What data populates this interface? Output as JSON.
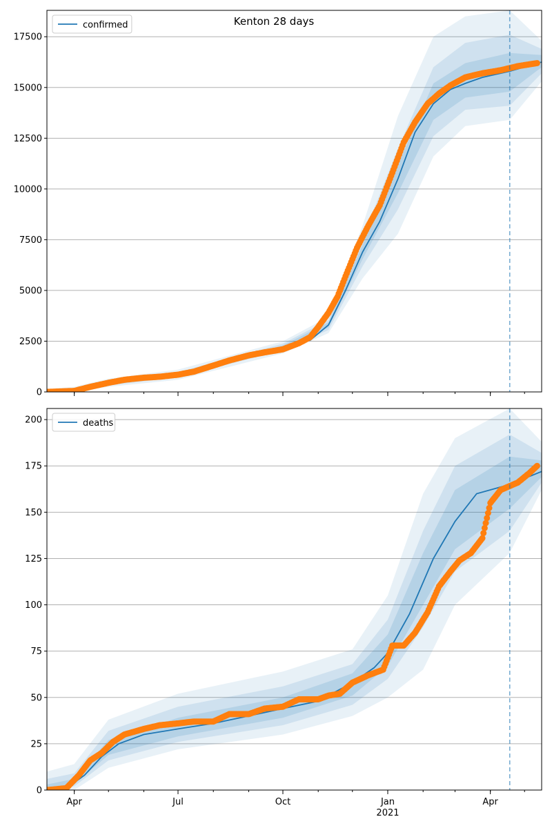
{
  "figure": {
    "title": "Kenton 28 days"
  },
  "chart_data": [
    {
      "type": "line",
      "panel": "confirmed",
      "title": "Kenton 28 days",
      "legend": {
        "placement": "top-left",
        "entries": [
          "confirmed"
        ]
      },
      "grid": "horizontal",
      "x_axis": {
        "range": [
          "2020-03-08",
          "2021-05-16"
        ],
        "ticks": [
          {
            "date": "2020-04-01",
            "label": "Apr"
          },
          {
            "date": "2020-07-01",
            "label": "Jul"
          },
          {
            "date": "2020-10-01",
            "label": "Oct"
          },
          {
            "date": "2021-01-01",
            "label": "Jan",
            "sub": "2021"
          },
          {
            "date": "2021-04-01",
            "label": "Apr"
          }
        ]
      },
      "y_axis": {
        "range": [
          0,
          18800
        ],
        "ticks": [
          0,
          2500,
          5000,
          7500,
          10000,
          12500,
          15000,
          17500
        ],
        "tick_labels": [
          "0",
          "2500",
          "5000",
          "7500",
          "10000",
          "12500",
          "15000",
          "17500"
        ]
      },
      "forecast_start": "2021-04-18",
      "series": [
        {
          "name": "confirmed",
          "role": "model median",
          "color": "#1f77b4",
          "x": [
            "2020-03-08",
            "2020-04-01",
            "2020-05-01",
            "2020-06-01",
            "2020-07-01",
            "2020-08-01",
            "2020-09-01",
            "2020-10-01",
            "2020-10-25",
            "2020-11-10",
            "2020-11-25",
            "2020-12-10",
            "2020-12-25",
            "2021-01-10",
            "2021-01-25",
            "2021-02-10",
            "2021-02-25",
            "2021-03-10",
            "2021-03-25",
            "2021-04-18",
            "2021-05-16"
          ],
          "y": [
            0,
            20,
            400,
            700,
            850,
            1250,
            1700,
            2200,
            2550,
            3300,
            5000,
            6900,
            8400,
            10500,
            12800,
            14200,
            14900,
            15200,
            15500,
            15800,
            16250
          ]
        },
        {
          "name": "observed confirmed",
          "role": "observations",
          "color": "#ff7f0e",
          "x": [
            "2020-03-08",
            "2020-04-01",
            "2020-04-15",
            "2020-05-01",
            "2020-05-15",
            "2020-06-01",
            "2020-06-15",
            "2020-07-01",
            "2020-07-15",
            "2020-08-01",
            "2020-08-15",
            "2020-09-01",
            "2020-09-15",
            "2020-10-01",
            "2020-10-15",
            "2020-10-25",
            "2020-11-01",
            "2020-11-10",
            "2020-11-18",
            "2020-11-25",
            "2020-12-05",
            "2020-12-15",
            "2020-12-25",
            "2021-01-05",
            "2021-01-15",
            "2021-01-25",
            "2021-02-05",
            "2021-02-15",
            "2021-02-25",
            "2021-03-10",
            "2021-03-25",
            "2021-04-10",
            "2021-04-25",
            "2021-05-12"
          ],
          "y": [
            0,
            50,
            250,
            450,
            600,
            700,
            750,
            850,
            1000,
            1300,
            1550,
            1800,
            1950,
            2100,
            2400,
            2700,
            3200,
            3900,
            4700,
            5700,
            7100,
            8200,
            9200,
            10800,
            12300,
            13300,
            14200,
            14700,
            15100,
            15500,
            15700,
            15850,
            16050,
            16200
          ]
        }
      ],
      "bands": [
        {
          "name": "outer",
          "opacity": 0.1,
          "x": [
            "2020-03-08",
            "2020-04-01",
            "2020-05-01",
            "2020-07-01",
            "2020-10-01",
            "2020-11-10",
            "2020-12-10",
            "2021-01-10",
            "2021-02-10",
            "2021-03-10",
            "2021-04-18",
            "2021-05-16"
          ],
          "lower": [
            0,
            0,
            250,
            600,
            1900,
            2900,
            5600,
            7800,
            11600,
            13100,
            13400,
            15300
          ],
          "upper": [
            150,
            250,
            650,
            1100,
            2500,
            3700,
            8200,
            13600,
            17500,
            18500,
            18800,
            17300
          ]
        },
        {
          "name": "middle",
          "opacity": 0.12,
          "x": [
            "2020-03-08",
            "2020-04-01",
            "2020-05-01",
            "2020-07-01",
            "2020-10-01",
            "2020-11-10",
            "2020-12-10",
            "2021-01-10",
            "2021-02-10",
            "2021-03-10",
            "2021-04-18",
            "2021-05-16"
          ],
          "lower": [
            0,
            10,
            320,
            720,
            2050,
            3050,
            6200,
            9000,
            12600,
            13900,
            14100,
            15700
          ],
          "upper": [
            80,
            120,
            520,
            980,
            2380,
            3550,
            7600,
            12000,
            16000,
            17200,
            17600,
            16900
          ]
        },
        {
          "name": "inner",
          "opacity": 0.14,
          "x": [
            "2020-03-08",
            "2020-04-01",
            "2020-05-01",
            "2020-07-01",
            "2020-10-01",
            "2020-11-10",
            "2020-12-10",
            "2021-01-10",
            "2021-02-10",
            "2021-03-10",
            "2021-04-18",
            "2021-05-16"
          ],
          "lower": [
            0,
            15,
            360,
            790,
            2130,
            3180,
            6550,
            9800,
            13400,
            14500,
            14800,
            16000
          ],
          "upper": [
            40,
            60,
            460,
            910,
            2290,
            3430,
            7250,
            11200,
            15200,
            16200,
            16700,
            16600
          ]
        }
      ]
    },
    {
      "type": "line",
      "panel": "deaths",
      "legend": {
        "placement": "top-left",
        "entries": [
          "deaths"
        ]
      },
      "grid": "horizontal",
      "x_axis": {
        "range": [
          "2020-03-08",
          "2021-05-16"
        ],
        "ticks": [
          {
            "date": "2020-04-01",
            "label": "Apr"
          },
          {
            "date": "2020-07-01",
            "label": "Jul"
          },
          {
            "date": "2020-10-01",
            "label": "Oct"
          },
          {
            "date": "2021-01-01",
            "label": "Jan",
            "sub": "2021"
          },
          {
            "date": "2021-04-01",
            "label": "Apr"
          }
        ]
      },
      "y_axis": {
        "range": [
          0,
          206
        ],
        "ticks": [
          0,
          25,
          50,
          75,
          100,
          125,
          150,
          175,
          200
        ],
        "tick_labels": [
          "0",
          "25",
          "50",
          "75",
          "100",
          "125",
          "150",
          "175",
          "200"
        ]
      },
      "forecast_start": "2021-04-18",
      "series": [
        {
          "name": "deaths",
          "role": "model median",
          "color": "#1f77b4",
          "x": [
            "2020-03-08",
            "2020-03-25",
            "2020-04-10",
            "2020-04-25",
            "2020-05-10",
            "2020-06-01",
            "2020-07-01",
            "2020-08-01",
            "2020-09-01",
            "2020-10-01",
            "2020-11-01",
            "2020-12-01",
            "2020-12-20",
            "2021-01-01",
            "2021-01-20",
            "2021-02-10",
            "2021-03-01",
            "2021-03-20",
            "2021-04-18",
            "2021-05-16"
          ],
          "y": [
            0,
            1,
            8,
            18,
            25,
            30,
            33,
            36,
            40,
            44,
            48,
            58,
            66,
            74,
            95,
            125,
            145,
            160,
            165,
            172
          ]
        },
        {
          "name": "observed deaths",
          "role": "observations",
          "color": "#ff7f0e",
          "x": [
            "2020-03-08",
            "2020-03-25",
            "2020-04-05",
            "2020-04-15",
            "2020-04-25",
            "2020-05-05",
            "2020-05-15",
            "2020-06-01",
            "2020-06-15",
            "2020-07-01",
            "2020-07-15",
            "2020-08-01",
            "2020-08-15",
            "2020-09-01",
            "2020-09-15",
            "2020-10-01",
            "2020-10-15",
            "2020-11-01",
            "2020-11-10",
            "2020-11-20",
            "2020-12-01",
            "2020-12-15",
            "2020-12-28",
            "2021-01-05",
            "2021-01-15",
            "2021-01-25",
            "2021-02-05",
            "2021-02-15",
            "2021-02-25",
            "2021-03-05",
            "2021-03-15",
            "2021-03-25",
            "2021-04-01",
            "2021-04-10",
            "2021-04-25",
            "2021-05-05",
            "2021-05-12"
          ],
          "y": [
            0,
            1,
            8,
            16,
            20,
            26,
            30,
            33,
            35,
            36,
            37,
            37,
            41,
            41,
            44,
            45,
            49,
            49,
            51,
            52,
            58,
            62,
            65,
            78,
            78,
            85,
            96,
            110,
            118,
            124,
            128,
            136,
            155,
            162,
            166,
            171,
            175
          ]
        }
      ],
      "bands": [
        {
          "name": "outer",
          "opacity": 0.1,
          "x": [
            "2020-03-08",
            "2020-04-01",
            "2020-05-01",
            "2020-07-01",
            "2020-10-01",
            "2020-12-01",
            "2021-01-01",
            "2021-02-01",
            "2021-03-01",
            "2021-04-18",
            "2021-05-16"
          ],
          "lower": [
            0,
            0,
            12,
            22,
            30,
            40,
            50,
            65,
            100,
            128,
            162
          ],
          "upper": [
            10,
            14,
            38,
            52,
            64,
            76,
            105,
            160,
            190,
            206,
            188
          ]
        },
        {
          "name": "middle",
          "opacity": 0.12,
          "x": [
            "2020-03-08",
            "2020-04-01",
            "2020-05-01",
            "2020-07-01",
            "2020-10-01",
            "2020-12-01",
            "2021-01-01",
            "2021-02-01",
            "2021-03-01",
            "2021-04-18",
            "2021-05-16"
          ],
          "lower": [
            0,
            2,
            16,
            26,
            35,
            46,
            60,
            88,
            118,
            140,
            166
          ],
          "upper": [
            6,
            9,
            32,
            45,
            56,
            68,
            92,
            140,
            175,
            192,
            182
          ]
        },
        {
          "name": "inner",
          "opacity": 0.14,
          "x": [
            "2020-03-08",
            "2020-04-01",
            "2020-05-01",
            "2020-07-01",
            "2020-10-01",
            "2020-12-01",
            "2021-01-01",
            "2021-02-01",
            "2021-03-01",
            "2021-04-18",
            "2021-05-16"
          ],
          "lower": [
            0,
            3,
            19,
            29,
            39,
            51,
            67,
            100,
            130,
            152,
            169
          ],
          "upper": [
            3,
            6,
            27,
            39,
            50,
            63,
            84,
            128,
            162,
            180,
            178
          ]
        }
      ]
    }
  ]
}
